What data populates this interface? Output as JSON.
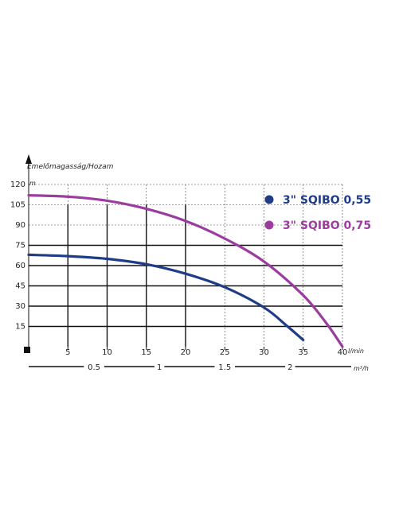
{
  "chart_data": {
    "type": "line",
    "ylabel": "Emelőmagasság/Hozam",
    "yunit": "m",
    "xunit": "l/min",
    "x2unit": "m³/h",
    "xlim": [
      0,
      40
    ],
    "ylim": [
      0,
      120
    ],
    "yticks": [
      15,
      30,
      45,
      60,
      75,
      90,
      105,
      120
    ],
    "xticks": [
      5,
      10,
      15,
      20,
      25,
      30,
      35,
      40
    ],
    "x2ticks": [
      "0.5",
      "1",
      "1.5",
      "2"
    ],
    "x2tick_values": [
      0.5,
      1,
      1.5,
      2
    ],
    "grid": true,
    "legend_position": "top-right",
    "series": [
      {
        "name": "3\" SQIBO 0,55",
        "color": "#1f3c88",
        "x": [
          0,
          5,
          10,
          15,
          20,
          25,
          30,
          33,
          35
        ],
        "y": [
          68,
          67,
          65,
          61,
          54,
          44,
          29,
          15,
          5
        ]
      },
      {
        "name": "3\" SQIBO 0,75",
        "color": "#9b3d9e",
        "x": [
          0,
          5,
          10,
          15,
          20,
          25,
          30,
          35,
          38,
          40
        ],
        "y": [
          112,
          111,
          108,
          102,
          93,
          80,
          63,
          38,
          17,
          0
        ]
      }
    ]
  }
}
